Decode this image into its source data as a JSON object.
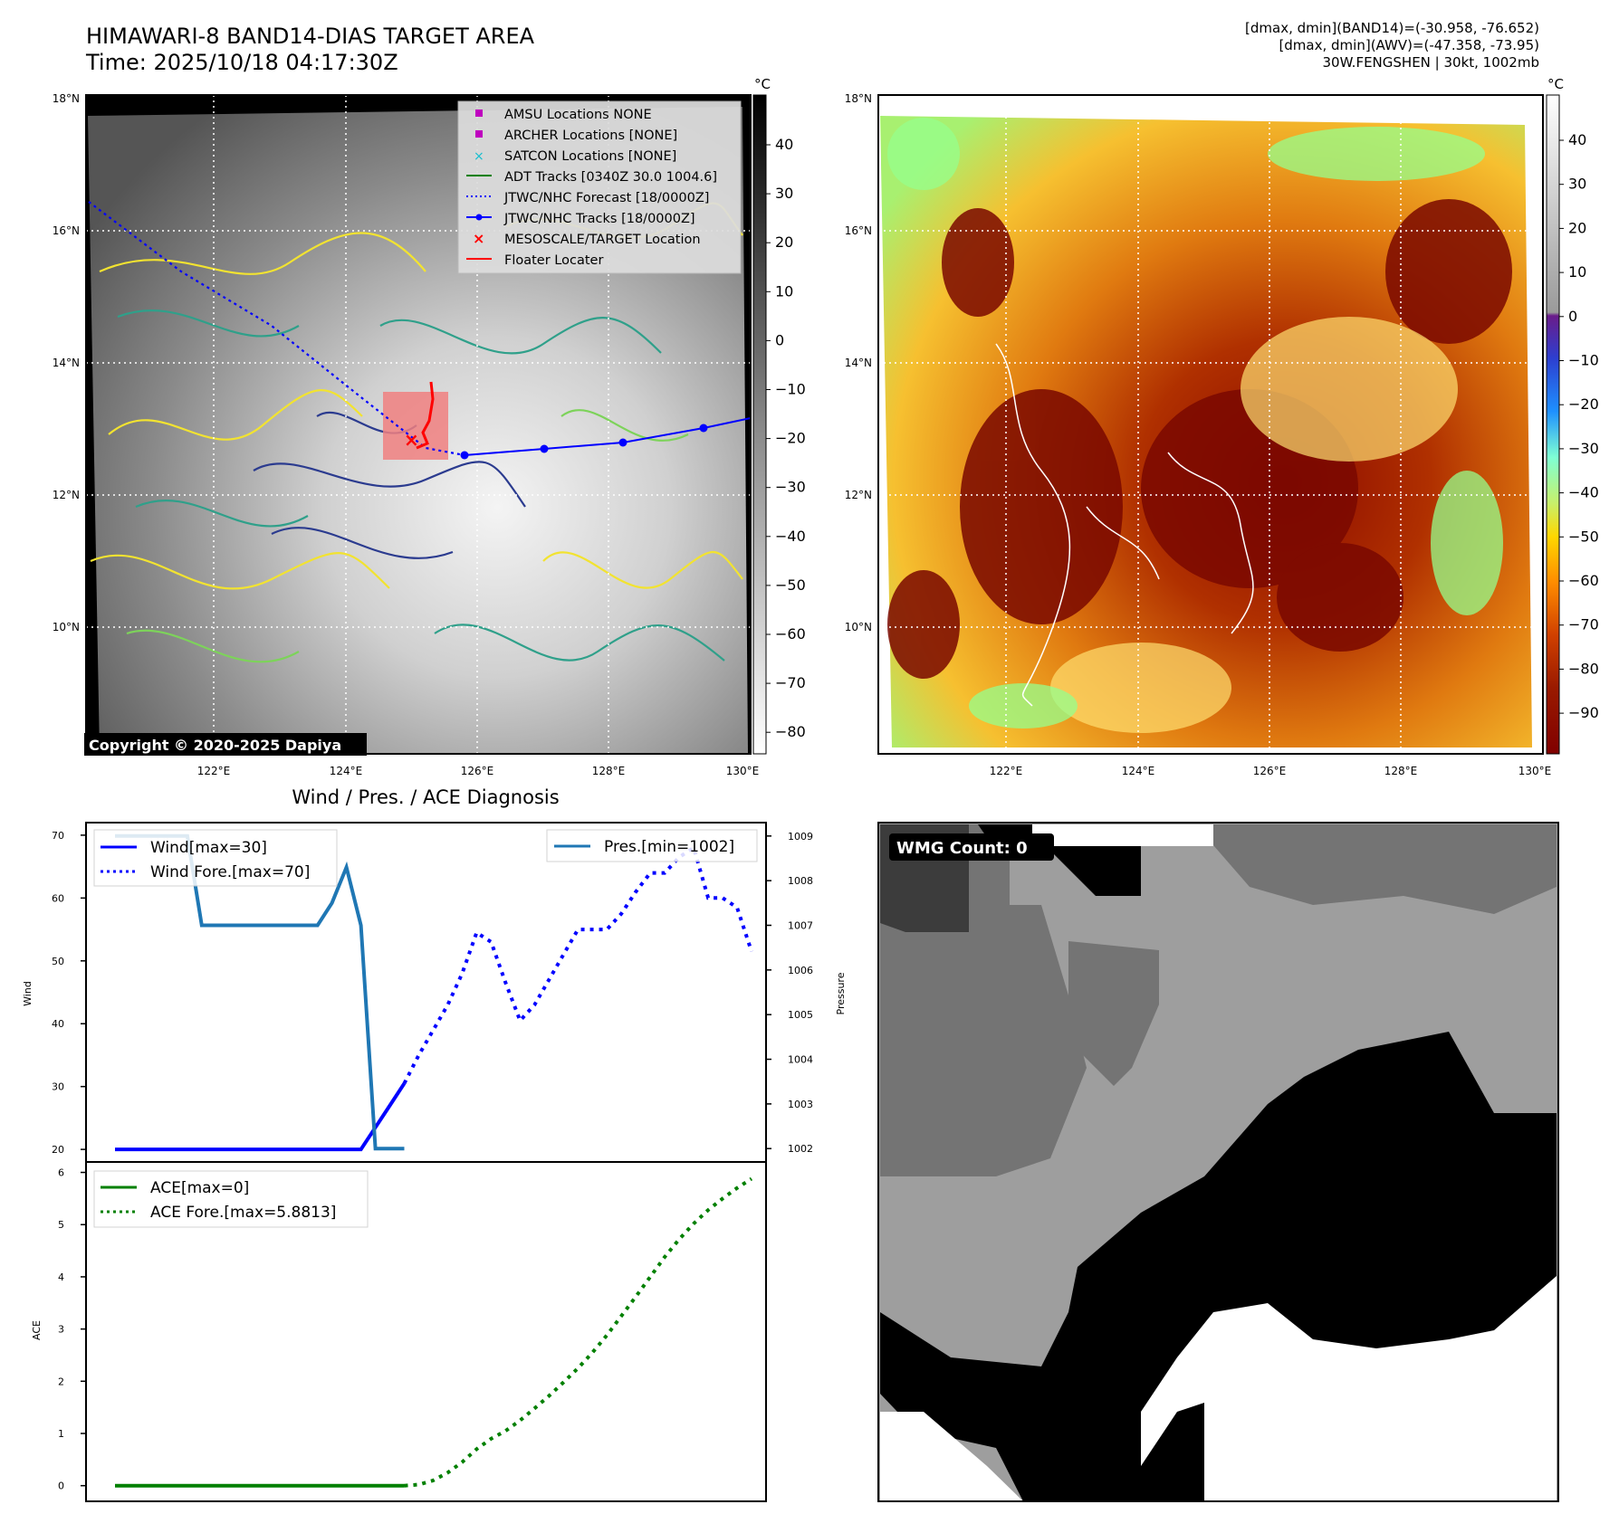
{
  "header": {
    "title_line1": "HIMAWARI-8 BAND14-DIAS TARGET AREA",
    "title_line2": "Time: 2025/10/18 04:17:30Z",
    "stats_line1": "[dmax, dmin](BAND14)=(-30.958, -76.652)",
    "stats_line2": "[dmax, dmin](AWV)=(-47.358, -73.95)",
    "stats_line3": "30W.FENGSHEN | 30kt, 1002mb"
  },
  "maps": {
    "lat_labels": [
      "18°N",
      "16°N",
      "14°N",
      "12°N",
      "10°N"
    ],
    "lon_labels": [
      "122°E",
      "124°E",
      "126°E",
      "128°E",
      "130°E"
    ],
    "colorbar_unit": "°C",
    "left_colorbar_ticks": [
      "40",
      "30",
      "20",
      "10",
      "0",
      "−10",
      "−20",
      "−30",
      "−40",
      "−50",
      "−60",
      "−70",
      "−80"
    ],
    "right_colorbar_ticks": [
      "40",
      "30",
      "20",
      "10",
      "0",
      "−10",
      "−20",
      "−30",
      "−40",
      "−50",
      "−60",
      "−70",
      "−80",
      "−90"
    ],
    "copyright": "Copyright © 2020-2025 Dapiya",
    "legend": [
      {
        "label": "AMSU Locations NONE",
        "color": "#bf00bf",
        "marker": "square"
      },
      {
        "label": "ARCHER Locations [NONE]",
        "color": "#bf00bf",
        "marker": "square"
      },
      {
        "label": "SATCON Locations [NONE]",
        "color": "#17becf",
        "marker": "x"
      },
      {
        "label": "ADT Tracks [0340Z 30.0 1004.6]",
        "color": "#008000",
        "marker": "line"
      },
      {
        "label": "JTWC/NHC Forecast [18/0000Z]",
        "color": "#0000ff",
        "marker": "dotted"
      },
      {
        "label": "JTWC/NHC Tracks [18/0000Z]",
        "color": "#0000ff",
        "marker": "line-dot"
      },
      {
        "label": "MESOSCALE/TARGET Location",
        "color": "#ff0000",
        "marker": "x"
      },
      {
        "label": "Floater Locater",
        "color": "#ff0000",
        "marker": "line"
      }
    ],
    "wmg_label": "WMG Count: 0"
  },
  "chart_data": [
    {
      "type": "line",
      "title": "Wind / Pres. / ACE Diagnosis",
      "ylabel": "Wind",
      "ylabel_right": "Pressure",
      "ylim": [
        18,
        72
      ],
      "ylim_right": [
        1001.7,
        1009.3
      ],
      "xlim": [
        0,
        47
      ],
      "left_ticks": [
        20,
        30,
        40,
        50,
        60,
        70
      ],
      "right_ticks": [
        1002,
        1003,
        1004,
        1005,
        1006,
        1007,
        1008,
        1009
      ],
      "series": [
        {
          "name": "Wind[max=30]",
          "axis": "left",
          "color": "#0000ff",
          "style": "solid",
          "x": [
            2,
            3,
            4,
            5,
            6,
            7,
            8,
            9,
            10,
            11,
            12,
            13,
            14,
            15,
            16,
            17,
            18,
            19,
            20,
            21,
            22
          ],
          "y": [
            20,
            20,
            20,
            20,
            20,
            20,
            20,
            20,
            20,
            20,
            20,
            20,
            20,
            20,
            20,
            20,
            20,
            20,
            23.5,
            27,
            30.5
          ]
        },
        {
          "name": "Wind Fore.[max=70]",
          "axis": "left",
          "color": "#0000ff",
          "style": "dotted",
          "x": [
            22,
            23,
            24,
            25,
            26,
            27,
            28,
            29,
            30,
            31,
            32,
            33,
            34,
            35,
            36,
            37,
            38,
            39,
            40,
            41,
            42,
            43,
            44,
            45,
            46
          ],
          "y": [
            30.5,
            35,
            39,
            43,
            48,
            54.5,
            53,
            46.5,
            40.5,
            43,
            47,
            51,
            55,
            55,
            55,
            57.5,
            61,
            64,
            64,
            66.5,
            68,
            60,
            60,
            58.5,
            51.5
          ]
        },
        {
          "name": "Pres.[min=1002]",
          "axis": "right",
          "color": "#1f77b4",
          "style": "solid",
          "x": [
            2,
            3,
            4,
            5,
            6,
            7,
            8,
            9,
            10,
            11,
            12,
            13,
            14,
            15,
            16,
            17,
            18,
            19,
            20,
            21,
            22
          ],
          "y": [
            1009,
            1009,
            1009,
            1009,
            1009,
            1009,
            1007,
            1007,
            1007,
            1007,
            1007,
            1007,
            1007,
            1007,
            1007,
            1007.5,
            1008.3,
            1007,
            1002,
            1002,
            1002
          ]
        }
      ]
    },
    {
      "type": "line",
      "ylabel": "ACE",
      "ylim": [
        -0.3,
        6.2
      ],
      "xlim": [
        0,
        47
      ],
      "left_ticks": [
        0,
        1,
        2,
        3,
        4,
        5,
        6
      ],
      "series": [
        {
          "name": "ACE[max=0]",
          "color": "#008000",
          "style": "solid",
          "x": [
            2,
            8,
            14,
            20,
            22
          ],
          "y": [
            0,
            0,
            0,
            0,
            0
          ]
        },
        {
          "name": "ACE Fore.[max=5.8813]",
          "color": "#008000",
          "style": "dotted",
          "x": [
            22,
            23,
            24,
            25,
            26,
            27,
            28,
            29,
            30,
            31,
            32,
            33,
            34,
            35,
            36,
            37,
            38,
            39,
            40,
            41,
            42,
            43,
            44,
            45,
            46
          ],
          "y": [
            0,
            0.02,
            0.1,
            0.25,
            0.45,
            0.7,
            0.9,
            1.05,
            1.25,
            1.48,
            1.72,
            1.98,
            2.25,
            2.55,
            2.88,
            3.25,
            3.62,
            4.0,
            4.38,
            4.72,
            5.02,
            5.28,
            5.5,
            5.7,
            5.88
          ]
        }
      ]
    }
  ]
}
